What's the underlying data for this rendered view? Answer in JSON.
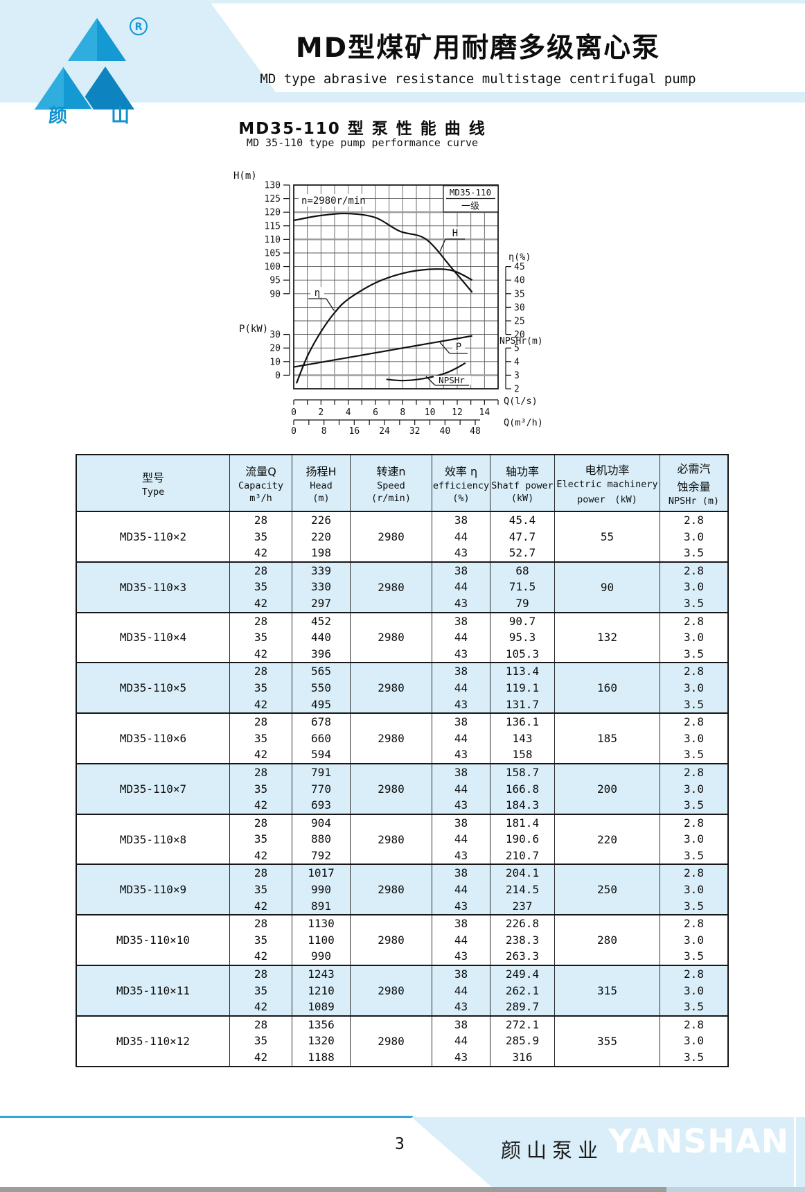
{
  "theme": {
    "band_blue": "#d9eef8",
    "logo_blue": "#1499d3",
    "rule_blue": "#35a5d6",
    "ink": "#0d0d0d"
  },
  "header": {
    "logo_char_1": "颜",
    "logo_char_2": "山",
    "registered_mark": "R",
    "title_cn": "MD型煤矿用耐磨多级离心泵",
    "title_en": "MD type abrasive resistance multistage centrifugal pump"
  },
  "chart": {
    "title_cn": "MD35-110 型 泵 性 能 曲 线",
    "title_en": "MD 35-110 type pump performance curve",
    "speed_note": "n=2980r/min",
    "legend_model": "MD35-110",
    "legend_stage": "一级",
    "curve_labels": {
      "h": "H",
      "eta": "η",
      "p": "P",
      "npshr": "NPSHr"
    }
  },
  "chart_data": {
    "type": "line",
    "title": "MD35-110 型 泵 性 能 曲 线",
    "subtitle": "MD 35-110 type pump performance curve",
    "annotation": "n=2980r/min",
    "legend": {
      "model": "MD35-110",
      "stage": "一级"
    },
    "grid": true,
    "x_axis_q_ls": {
      "label": "Q(l/s)",
      "ticks": [
        0,
        2,
        4,
        6,
        8,
        10,
        12,
        14
      ],
      "range": [
        0,
        15
      ]
    },
    "x_axis_q_m3h": {
      "label": "Q(m³/h)",
      "ticks": [
        0,
        8,
        16,
        24,
        32,
        40,
        48
      ]
    },
    "y_axis_h": {
      "label": "H(m)",
      "ticks": [
        130,
        125,
        120,
        115,
        110,
        105,
        100,
        95,
        90
      ],
      "side": "left"
    },
    "y_axis_p": {
      "label": "P(kW)",
      "ticks": [
        30,
        20,
        10,
        0
      ],
      "side": "left"
    },
    "y_axis_eta": {
      "label": "η(%)",
      "ticks": [
        45,
        40,
        35,
        30,
        25,
        20
      ],
      "side": "right"
    },
    "y_axis_npshr": {
      "label": "NPSHr(m)",
      "ticks": [
        5,
        4,
        3,
        2
      ],
      "side": "right"
    },
    "series": [
      {
        "name": "H",
        "x_ls": [
          0,
          2,
          4,
          6,
          7.78,
          9.72,
          11.67,
          13.1
        ],
        "y": [
          117,
          118.8,
          119.5,
          118,
          113,
          110,
          99,
          90.5
        ]
      },
      {
        "name": "η",
        "x_ls": [
          0.2,
          1,
          2,
          3,
          4,
          6,
          8,
          10,
          11.67,
          13.1
        ],
        "y": [
          2,
          12,
          21,
          28,
          33,
          39,
          42.5,
          44,
          43.5,
          40
        ]
      },
      {
        "name": "P",
        "x_ls": [
          0,
          2,
          4,
          6,
          8,
          10,
          12,
          13.1
        ],
        "y": [
          6,
          9.5,
          13,
          16.5,
          20,
          23.5,
          27,
          29
        ]
      },
      {
        "name": "NPSHr",
        "x_ls": [
          6.8,
          8,
          9.5,
          11,
          12,
          12.6
        ],
        "y": [
          2.7,
          2.6,
          2.75,
          3.1,
          3.55,
          3.9
        ]
      }
    ]
  },
  "table": {
    "headers": {
      "type_cn": "型号",
      "type_en": "Type",
      "capacity_cn": "流量Q",
      "capacity_en": "Capacity",
      "capacity_unit": "m³/h",
      "head_cn": "扬程H",
      "head_en": "Head",
      "head_unit": "(m)",
      "speed_cn": "转速n",
      "speed_en": "Speed",
      "speed_unit": "(r/min)",
      "eff_cn": "效率 η",
      "eff_en": "efficiency",
      "eff_unit": "(%)",
      "shaft_cn": "轴功率",
      "shaft_en": "Shatf power",
      "shaft_unit": "(kW)",
      "motor_cn": "电机功率",
      "motor_en": "Electric machinery",
      "motor_unit": "power　(kW)",
      "npshr_cn1": "必需汽",
      "npshr_cn2": "蚀余量",
      "npshr_unit": "NPSHr (m)"
    },
    "groups": [
      {
        "model": "MD35-110×2",
        "capacity": [
          "28",
          "35",
          "42"
        ],
        "head": [
          "226",
          "220",
          "198"
        ],
        "speed": "2980",
        "efficiency": [
          "38",
          "44",
          "43"
        ],
        "shaft_power": [
          "45.4",
          "47.7",
          "52.7"
        ],
        "motor_power": "55",
        "npshr": [
          "2.8",
          "3.0",
          "3.5"
        ]
      },
      {
        "model": "MD35-110×3",
        "capacity": [
          "28",
          "35",
          "42"
        ],
        "head": [
          "339",
          "330",
          "297"
        ],
        "speed": "2980",
        "efficiency": [
          "38",
          "44",
          "43"
        ],
        "shaft_power": [
          "68",
          "71.5",
          "79"
        ],
        "motor_power": "90",
        "npshr": [
          "2.8",
          "3.0",
          "3.5"
        ]
      },
      {
        "model": "MD35-110×4",
        "capacity": [
          "28",
          "35",
          "42"
        ],
        "head": [
          "452",
          "440",
          "396"
        ],
        "speed": "2980",
        "efficiency": [
          "38",
          "44",
          "43"
        ],
        "shaft_power": [
          "90.7",
          "95.3",
          "105.3"
        ],
        "motor_power": "132",
        "npshr": [
          "2.8",
          "3.0",
          "3.5"
        ]
      },
      {
        "model": "MD35-110×5",
        "capacity": [
          "28",
          "35",
          "42"
        ],
        "head": [
          "565",
          "550",
          "495"
        ],
        "speed": "2980",
        "efficiency": [
          "38",
          "44",
          "43"
        ],
        "shaft_power": [
          "113.4",
          "119.1",
          "131.7"
        ],
        "motor_power": "160",
        "npshr": [
          "2.8",
          "3.0",
          "3.5"
        ]
      },
      {
        "model": "MD35-110×6",
        "capacity": [
          "28",
          "35",
          "42"
        ],
        "head": [
          "678",
          "660",
          "594"
        ],
        "speed": "2980",
        "efficiency": [
          "38",
          "44",
          "43"
        ],
        "shaft_power": [
          "136.1",
          "143",
          "158"
        ],
        "motor_power": "185",
        "npshr": [
          "2.8",
          "3.0",
          "3.5"
        ]
      },
      {
        "model": "MD35-110×7",
        "capacity": [
          "28",
          "35",
          "42"
        ],
        "head": [
          "791",
          "770",
          "693"
        ],
        "speed": "2980",
        "efficiency": [
          "38",
          "44",
          "43"
        ],
        "shaft_power": [
          "158.7",
          "166.8",
          "184.3"
        ],
        "motor_power": "200",
        "npshr": [
          "2.8",
          "3.0",
          "3.5"
        ]
      },
      {
        "model": "MD35-110×8",
        "capacity": [
          "28",
          "35",
          "42"
        ],
        "head": [
          "904",
          "880",
          "792"
        ],
        "speed": "2980",
        "efficiency": [
          "38",
          "44",
          "43"
        ],
        "shaft_power": [
          "181.4",
          "190.6",
          "210.7"
        ],
        "motor_power": "220",
        "npshr": [
          "2.8",
          "3.0",
          "3.5"
        ]
      },
      {
        "model": "MD35-110×9",
        "capacity": [
          "28",
          "35",
          "42"
        ],
        "head": [
          "1017",
          "990",
          "891"
        ],
        "speed": "2980",
        "efficiency": [
          "38",
          "44",
          "43"
        ],
        "shaft_power": [
          "204.1",
          "214.5",
          "237"
        ],
        "motor_power": "250",
        "npshr": [
          "2.8",
          "3.0",
          "3.5"
        ]
      },
      {
        "model": "MD35-110×10",
        "capacity": [
          "28",
          "35",
          "42"
        ],
        "head": [
          "1130",
          "1100",
          "990"
        ],
        "speed": "2980",
        "efficiency": [
          "38",
          "44",
          "43"
        ],
        "shaft_power": [
          "226.8",
          "238.3",
          "263.3"
        ],
        "motor_power": "280",
        "npshr": [
          "2.8",
          "3.0",
          "3.5"
        ]
      },
      {
        "model": "MD35-110×11",
        "capacity": [
          "28",
          "35",
          "42"
        ],
        "head": [
          "1243",
          "1210",
          "1089"
        ],
        "speed": "2980",
        "efficiency": [
          "38",
          "44",
          "43"
        ],
        "shaft_power": [
          "249.4",
          "262.1",
          "289.7"
        ],
        "motor_power": "315",
        "npshr": [
          "2.8",
          "3.0",
          "3.5"
        ]
      },
      {
        "model": "MD35-110×12",
        "capacity": [
          "28",
          "35",
          "42"
        ],
        "head": [
          "1356",
          "1320",
          "1188"
        ],
        "speed": "2980",
        "efficiency": [
          "38",
          "44",
          "43"
        ],
        "shaft_power": [
          "272.1",
          "285.9",
          "316"
        ],
        "motor_power": "355",
        "npshr": [
          "2.8",
          "3.0",
          "3.5"
        ]
      }
    ]
  },
  "footer": {
    "page_number": "3",
    "company_cn": "颜山泵业",
    "company_en": "YANSHAN"
  }
}
